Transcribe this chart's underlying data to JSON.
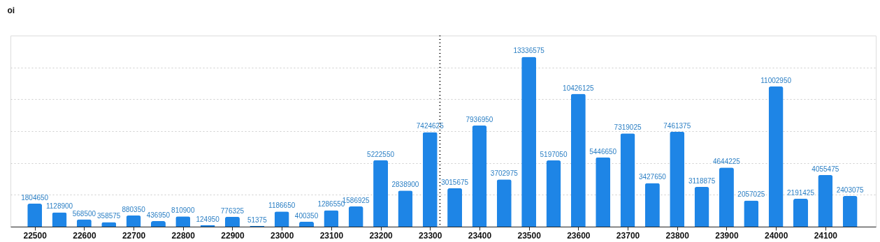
{
  "chart_data": {
    "type": "bar",
    "ylabel": "oi",
    "x": [
      22500,
      22550,
      22600,
      22650,
      22700,
      22750,
      22800,
      22850,
      22900,
      22950,
      23000,
      23050,
      23100,
      23150,
      23200,
      23250,
      23300,
      23350,
      23400,
      23450,
      23500,
      23550,
      23600,
      23650,
      23700,
      23750,
      23800,
      23850,
      23900,
      23950,
      24000,
      24050,
      24100,
      24150
    ],
    "series": [
      {
        "color": "#1e85e6",
        "values": [
          1804650,
          1128900,
          568500,
          358575,
          880350,
          436950,
          810900,
          124950,
          776325,
          51375,
          1186650,
          400350,
          1286550,
          1586925,
          5222550,
          2838900,
          7424625,
          3015675,
          7936950,
          3702975,
          13336575,
          5197050,
          10426125,
          5446650,
          7319025,
          3427650,
          7461375,
          3118875,
          4644225,
          2057025,
          11002950,
          2191425,
          4055475,
          2403075
        ]
      }
    ],
    "data_labels": true,
    "xlim": [
      22458,
      24195
    ],
    "xticks": [
      22500,
      22600,
      22700,
      22800,
      22900,
      23000,
      23100,
      23200,
      23300,
      23400,
      23500,
      23600,
      23700,
      23800,
      23900,
      24000,
      24100
    ],
    "ylim": [
      0,
      15000000
    ],
    "yticks": [
      {
        "value": 2500000,
        "label": null
      },
      {
        "value": 5000000,
        "label": null
      },
      {
        "value": 7500000,
        "label": null
      },
      {
        "value": 10000000,
        "label": null
      },
      {
        "value": 12500000,
        "label": null
      }
    ],
    "tick_labels": "x",
    "grid": "y",
    "ref_lines": [
      {
        "axis": "x",
        "value": 23320,
        "color": "#000000",
        "line_style": "dotted"
      }
    ]
  }
}
